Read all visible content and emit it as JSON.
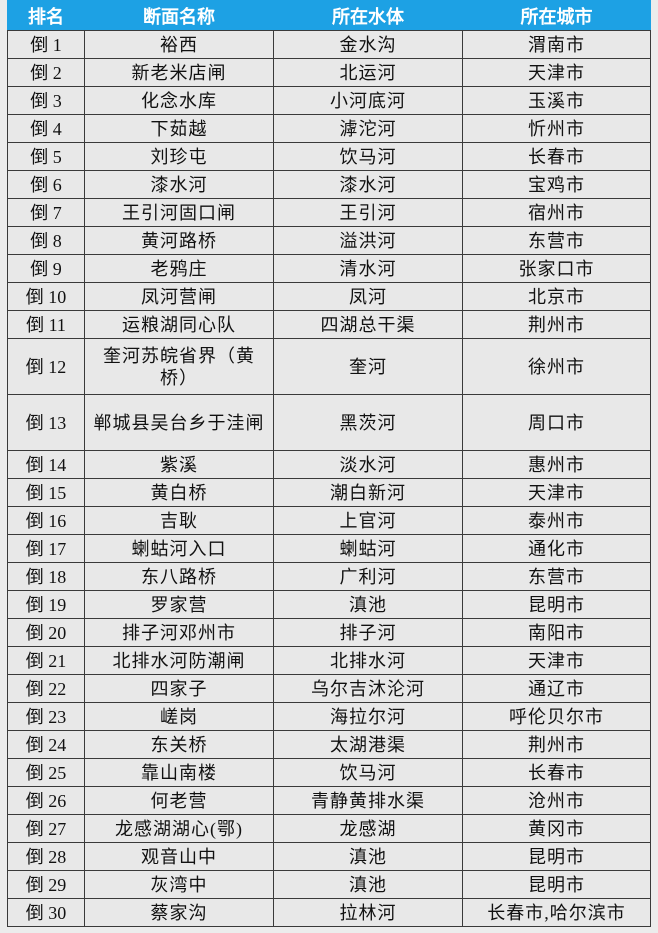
{
  "header": [
    "排名",
    "断面名称",
    "所在水体",
    "所在城市"
  ],
  "colors": {
    "header_bg": "#1da1e4",
    "cell_bg": "#e8e8e8"
  },
  "rows": [
    [
      "倒 1",
      "裕西",
      "金水沟",
      "渭南市"
    ],
    [
      "倒 2",
      "新老米店闸",
      "北运河",
      "天津市"
    ],
    [
      "倒 3",
      "化念水库",
      "小河底河",
      "玉溪市"
    ],
    [
      "倒 4",
      "下茹越",
      "滹沱河",
      "忻州市"
    ],
    [
      "倒 5",
      "刘珍屯",
      "饮马河",
      "长春市"
    ],
    [
      "倒 6",
      "漆水河",
      "漆水河",
      "宝鸡市"
    ],
    [
      "倒 7",
      "王引河固口闸",
      "王引河",
      "宿州市"
    ],
    [
      "倒 8",
      "黄河路桥",
      "溢洪河",
      "东营市"
    ],
    [
      "倒 9",
      "老鸦庄",
      "清水河",
      "张家口市"
    ],
    [
      "倒 10",
      "凤河营闸",
      "凤河",
      "北京市"
    ],
    [
      "倒 11",
      "运粮湖同心队",
      "四湖总干渠",
      "荆州市"
    ],
    [
      "倒 12",
      "奎河苏皖省界（黄桥）",
      "奎河",
      "徐州市"
    ],
    [
      "倒 13",
      "郸城县吴台乡于洼闸",
      "黑茨河",
      "周口市"
    ],
    [
      "倒 14",
      "紫溪",
      "淡水河",
      "惠州市"
    ],
    [
      "倒 15",
      "黄白桥",
      "潮白新河",
      "天津市"
    ],
    [
      "倒 16",
      "吉耿",
      "上官河",
      "泰州市"
    ],
    [
      "倒 17",
      "蝲蛄河入口",
      "蝲蛄河",
      "通化市"
    ],
    [
      "倒 18",
      "东八路桥",
      "广利河",
      "东营市"
    ],
    [
      "倒 19",
      "罗家营",
      "滇池",
      "昆明市"
    ],
    [
      "倒 20",
      "排子河邓州市",
      "排子河",
      "南阳市"
    ],
    [
      "倒 21",
      "北排水河防潮闸",
      "北排水河",
      "天津市"
    ],
    [
      "倒 22",
      "四家子",
      "乌尔吉沐沦河",
      "通辽市"
    ],
    [
      "倒 23",
      "嵯岗",
      "海拉尔河",
      "呼伦贝尔市"
    ],
    [
      "倒 24",
      "东关桥",
      "太湖港渠",
      "荆州市"
    ],
    [
      "倒 25",
      "靠山南楼",
      "饮马河",
      "长春市"
    ],
    [
      "倒 26",
      "何老营",
      "青静黄排水渠",
      "沧州市"
    ],
    [
      "倒 27",
      "龙感湖湖心(鄂)",
      "龙感湖",
      "黄冈市"
    ],
    [
      "倒 28",
      "观音山中",
      "滇池",
      "昆明市"
    ],
    [
      "倒 29",
      "灰湾中",
      "滇池",
      "昆明市"
    ],
    [
      "倒 30",
      "蔡家沟",
      "拉林河",
      "长春市,哈尔滨市"
    ]
  ]
}
